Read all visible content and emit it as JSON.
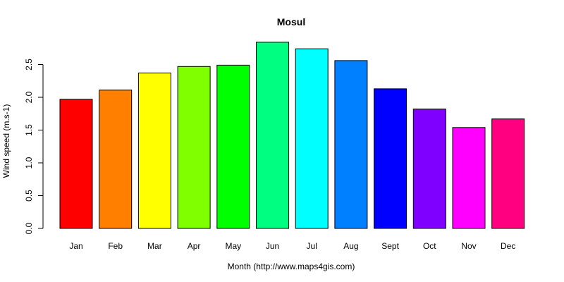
{
  "chart_data": {
    "type": "bar",
    "title": "Mosul",
    "xlabel": "Month (http://www.maps4gis.com)",
    "ylabel": "Wind speed (m.s-1)",
    "ylim": [
      0,
      2.8
    ],
    "yticks": [
      "0.0",
      "0.5",
      "1.0",
      "1.5",
      "2.0",
      "2.5"
    ],
    "grid": false,
    "categories": [
      "Jan",
      "Feb",
      "Mar",
      "Apr",
      "May",
      "Jun",
      "Jul",
      "Aug",
      "Sept",
      "Oct",
      "Nov",
      "Dec"
    ],
    "values": [
      1.97,
      2.11,
      2.37,
      2.47,
      2.49,
      2.84,
      2.74,
      2.56,
      2.13,
      1.82,
      1.54,
      1.67
    ],
    "colors": [
      "#FF0000",
      "#FF8000",
      "#FFFF00",
      "#80FF00",
      "#00FF00",
      "#00FF80",
      "#00FFFF",
      "#0080FF",
      "#0000FF",
      "#8000FF",
      "#FF00FF",
      "#FF0080"
    ]
  }
}
